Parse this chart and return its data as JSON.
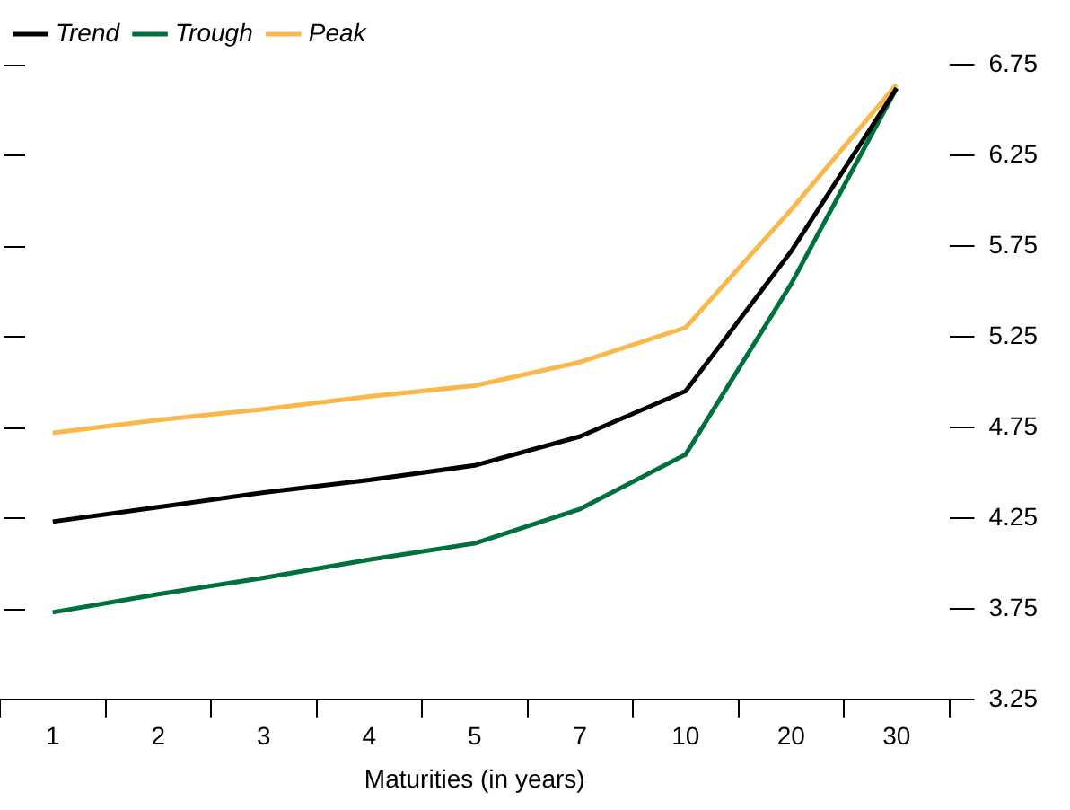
{
  "chart_data": {
    "type": "line",
    "xlabel": "Maturities (in years)",
    "categories": [
      "1",
      "2",
      "3",
      "4",
      "5",
      "7",
      "10",
      "20",
      "30"
    ],
    "series": [
      {
        "name": "Trend",
        "color": "#000000",
        "values": [
          4.23,
          4.31,
          4.39,
          4.46,
          4.54,
          4.7,
          4.95,
          5.72,
          6.62
        ]
      },
      {
        "name": "Trough",
        "color": "#00703c",
        "values": [
          3.73,
          3.83,
          3.92,
          4.02,
          4.11,
          4.3,
          4.6,
          5.54,
          6.62
        ]
      },
      {
        "name": "Peak",
        "color": "#fbb84a",
        "values": [
          4.72,
          4.79,
          4.85,
          4.92,
          4.98,
          5.11,
          5.3,
          5.95,
          6.64
        ]
      }
    ],
    "ylim": [
      3.25,
      6.75
    ],
    "yticks": [
      3.25,
      3.75,
      4.25,
      4.75,
      5.25,
      5.75,
      6.25,
      6.75
    ],
    "grid": false,
    "legend": "top left",
    "marker": "none",
    "line_style": "solid"
  }
}
